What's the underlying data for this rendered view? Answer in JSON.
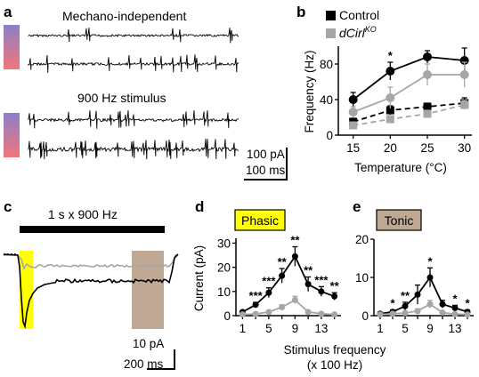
{
  "panels": {
    "a": {
      "label": "a",
      "title_top": "Mechano-independent",
      "title_bottom": "900 Hz stimulus",
      "scale_current": "100 pA",
      "scale_time": "100 ms"
    },
    "b": {
      "label": "b"
    },
    "c": {
      "label": "c",
      "stim_label": "1 s x 900 Hz",
      "scale_current": "10 pA",
      "scale_time": "200 ms"
    },
    "d": {
      "label": "d",
      "box_label": "Phasic"
    },
    "e": {
      "label": "e",
      "box_label": "Tonic"
    }
  },
  "colors": {
    "control": "#000000",
    "ko": "#a6a6a6",
    "phasic_box": "#ffff00",
    "tonic_box": "#bfa994",
    "gradient_top": "#8c7fc9",
    "gradient_bottom": "#f2767a"
  },
  "legend": {
    "control": "Control",
    "ko_main": "dCirl",
    "ko_sup": "KO"
  },
  "shared_axes": {
    "de_xlabel_line1": "Stimulus frequency",
    "de_xlabel_line2": "(x 100 Hz)"
  },
  "chart_data": [
    {
      "id": "b",
      "type": "line",
      "xlabel": "Temperature (°C)",
      "ylabel": "Frequency (Hz)",
      "x": [
        15,
        20,
        25,
        30
      ],
      "xticks": [
        "15",
        "20",
        "25",
        "30"
      ],
      "yticks": [
        "0",
        "40",
        "80"
      ],
      "xlim": [
        13,
        31
      ],
      "ylim": [
        0,
        100
      ],
      "annotations": [
        {
          "x": 20,
          "text": "*"
        }
      ],
      "series": [
        {
          "name": "Control",
          "condition": "Mechano-independent (dashed)",
          "style": "dashed",
          "marker": "square",
          "color": "#000000",
          "values": [
            15,
            28,
            32,
            36
          ],
          "errors": [
            4,
            5,
            4,
            6
          ]
        },
        {
          "name": "dCirl KO",
          "condition": "Mechano-independent (dashed)",
          "style": "dashed",
          "marker": "square",
          "color": "#a6a6a6",
          "values": [
            11,
            18,
            24,
            34
          ],
          "errors": [
            3,
            4,
            4,
            5
          ]
        },
        {
          "name": "Control",
          "condition": "900 Hz stimulus (solid)",
          "style": "solid",
          "marker": "circle",
          "color": "#000000",
          "values": [
            40,
            72,
            88,
            84
          ],
          "errors": [
            8,
            10,
            7,
            14
          ]
        },
        {
          "name": "dCirl KO",
          "condition": "900 Hz stimulus (solid)",
          "style": "solid",
          "marker": "circle",
          "color": "#a6a6a6",
          "values": [
            26,
            42,
            68,
            68
          ],
          "errors": [
            6,
            12,
            12,
            14
          ]
        }
      ]
    },
    {
      "id": "d",
      "type": "line",
      "title": "Phasic",
      "xlabel": "Stimulus frequency (x 100 Hz)",
      "ylabel": "Current (pA)",
      "x": [
        1,
        3,
        5,
        7,
        9,
        11,
        13,
        15
      ],
      "xticks": [
        "1",
        "5",
        "9",
        "13"
      ],
      "yticks": [
        "0",
        "10",
        "20",
        "30"
      ],
      "xlim": [
        0,
        16
      ],
      "ylim": [
        0,
        32
      ],
      "series": [
        {
          "name": "Control",
          "color": "#000000",
          "values": [
            1.5,
            4.5,
            9.5,
            16.5,
            24.5,
            13,
            10,
            8
          ],
          "errors": [
            0.5,
            1.0,
            2.0,
            3.0,
            4.0,
            3.0,
            2.0,
            1.5
          ]
        },
        {
          "name": "dCirl KO",
          "color": "#a6a6a6",
          "values": [
            0.5,
            0.7,
            1.5,
            3.5,
            6.5,
            1.5,
            0.8,
            0.5
          ],
          "errors": [
            0.3,
            0.4,
            0.6,
            1.0,
            1.5,
            0.6,
            0.4,
            0.3
          ]
        }
      ],
      "significance": [
        "",
        "***",
        "***",
        "**",
        "**",
        "**",
        "***",
        "**"
      ]
    },
    {
      "id": "e",
      "type": "line",
      "title": "Tonic",
      "xlabel": "Stimulus frequency (x 100 Hz)",
      "ylabel": "",
      "x": [
        1,
        3,
        5,
        7,
        9,
        11,
        13,
        15
      ],
      "xticks": [
        "1",
        "5",
        "9",
        "13"
      ],
      "yticks": [
        "0",
        "10",
        "20"
      ],
      "xlim": [
        0,
        16
      ],
      "ylim": [
        0,
        20
      ],
      "series": [
        {
          "name": "Control",
          "color": "#000000",
          "values": [
            0.5,
            1.0,
            2.5,
            5.5,
            10,
            3,
            2.0,
            1.0
          ],
          "errors": [
            0.3,
            0.5,
            1.0,
            2.5,
            2.5,
            1.0,
            0.7,
            0.5
          ]
        },
        {
          "name": "dCirl KO",
          "color": "#a6a6a6",
          "values": [
            0.3,
            0.5,
            0.7,
            1.2,
            3,
            0.8,
            0.4,
            0.3
          ],
          "errors": [
            0.2,
            0.3,
            0.4,
            0.6,
            1.0,
            0.4,
            0.3,
            0.2
          ]
        }
      ],
      "significance": [
        "",
        "*",
        "**",
        "",
        "*",
        "",
        "*",
        "*"
      ]
    }
  ]
}
